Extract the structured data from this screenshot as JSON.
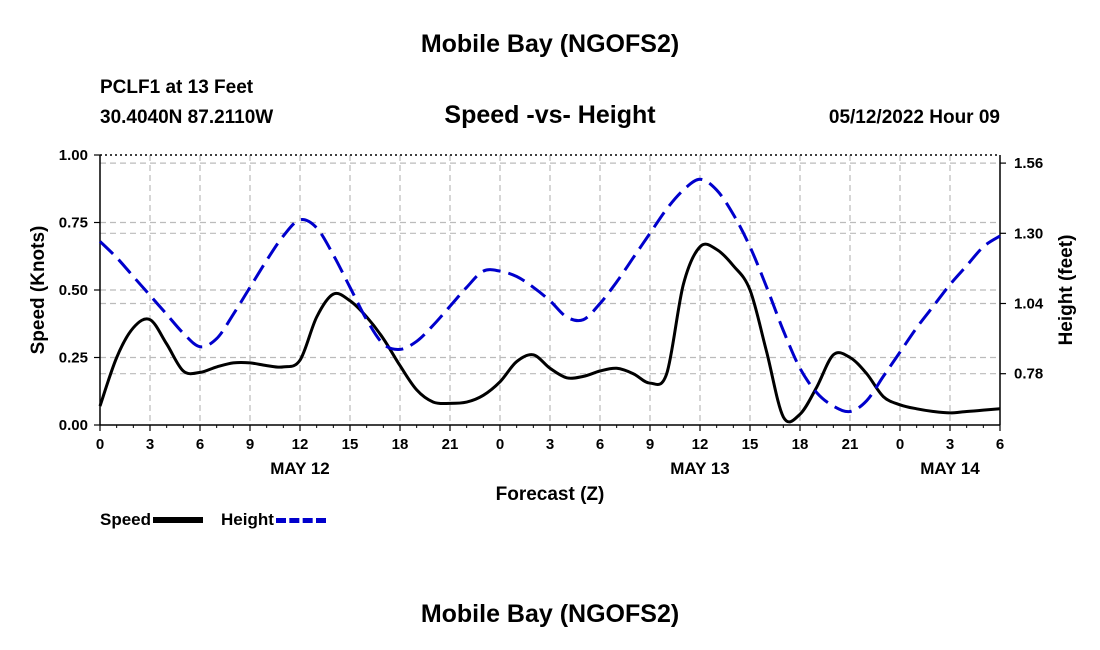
{
  "header": {
    "title": "Mobile Bay (NGOFS2)",
    "station": "PCLF1 at 13 Feet",
    "coords": "30.4040N  87.2110W",
    "chart_title": "Speed -vs- Height",
    "datetime": "05/12/2022 Hour 09"
  },
  "footer": {
    "title": "Mobile Bay (NGOFS2)"
  },
  "legend": {
    "speed_label": "Speed",
    "height_label": "Height"
  },
  "colors": {
    "speed": "#000000",
    "height": "#0000cc",
    "grid": "#bbbbbb"
  },
  "chart_data": {
    "type": "line",
    "title": "Speed -vs- Height",
    "xlabel": "Forecast (Z)",
    "ylabel": "Speed (Knots)",
    "ylabel_right": "Height (feet)",
    "x_ticks": [
      "0",
      "3",
      "6",
      "9",
      "12",
      "15",
      "18",
      "21",
      "0",
      "3",
      "6",
      "9",
      "12",
      "15",
      "18",
      "21",
      "0",
      "3",
      "6"
    ],
    "date_labels": [
      {
        "label": "MAY 12",
        "hour": 12
      },
      {
        "label": "MAY 13",
        "hour": 36
      },
      {
        "label": "MAY 14",
        "hour": 51
      }
    ],
    "xlim": [
      0,
      54
    ],
    "ylim": [
      0,
      1.0
    ],
    "y_ticks": [
      "0.00",
      "0.25",
      "0.50",
      "0.75",
      "1.00"
    ],
    "ylim_right": [
      0.59,
      1.59
    ],
    "y_ticks_right": [
      "0.78",
      "1.04",
      "1.30",
      "1.56"
    ],
    "grid": true,
    "series": [
      {
        "name": "Speed",
        "axis": "left",
        "x": [
          0,
          1,
          2,
          3,
          4,
          5,
          6,
          7,
          8,
          9,
          10,
          11,
          12,
          13,
          14,
          15,
          16,
          17,
          18,
          19,
          20,
          21,
          22,
          23,
          24,
          25,
          26,
          27,
          28,
          29,
          30,
          31,
          32,
          33,
          34,
          35,
          36,
          37,
          38,
          39,
          40,
          41,
          42,
          43,
          44,
          45,
          46,
          47,
          48,
          49,
          50,
          51,
          52,
          53,
          54
        ],
        "values": [
          0.07,
          0.25,
          0.36,
          0.39,
          0.3,
          0.2,
          0.195,
          0.215,
          0.23,
          0.23,
          0.22,
          0.215,
          0.24,
          0.4,
          0.485,
          0.46,
          0.4,
          0.32,
          0.22,
          0.13,
          0.085,
          0.08,
          0.085,
          0.11,
          0.16,
          0.235,
          0.26,
          0.21,
          0.175,
          0.18,
          0.2,
          0.21,
          0.19,
          0.155,
          0.19,
          0.52,
          0.66,
          0.65,
          0.59,
          0.5,
          0.27,
          0.03,
          0.04,
          0.14,
          0.26,
          0.25,
          0.19,
          0.105,
          0.075,
          0.06,
          0.05,
          0.045,
          0.05,
          0.055,
          0.06
        ]
      },
      {
        "name": "Height",
        "axis": "right",
        "x": [
          0,
          1,
          2,
          3,
          4,
          5,
          6,
          7,
          8,
          9,
          10,
          11,
          12,
          13,
          14,
          15,
          16,
          17,
          18,
          19,
          20,
          21,
          22,
          23,
          24,
          25,
          26,
          27,
          28,
          29,
          30,
          31,
          32,
          33,
          34,
          35,
          36,
          37,
          38,
          39,
          40,
          41,
          42,
          43,
          44,
          45,
          46,
          47,
          48,
          49,
          50,
          51,
          52,
          53,
          54
        ],
        "values": [
          1.27,
          1.21,
          1.14,
          1.07,
          1.0,
          0.93,
          0.88,
          0.91,
          1.0,
          1.1,
          1.2,
          1.29,
          1.35,
          1.32,
          1.22,
          1.1,
          0.98,
          0.89,
          0.87,
          0.9,
          0.96,
          1.03,
          1.1,
          1.16,
          1.16,
          1.14,
          1.1,
          1.05,
          0.99,
          0.98,
          1.04,
          1.12,
          1.21,
          1.3,
          1.39,
          1.46,
          1.5,
          1.46,
          1.37,
          1.25,
          1.1,
          0.94,
          0.8,
          0.71,
          0.66,
          0.64,
          0.68,
          0.77,
          0.86,
          0.95,
          1.03,
          1.11,
          1.18,
          1.25,
          1.29
        ]
      }
    ]
  }
}
